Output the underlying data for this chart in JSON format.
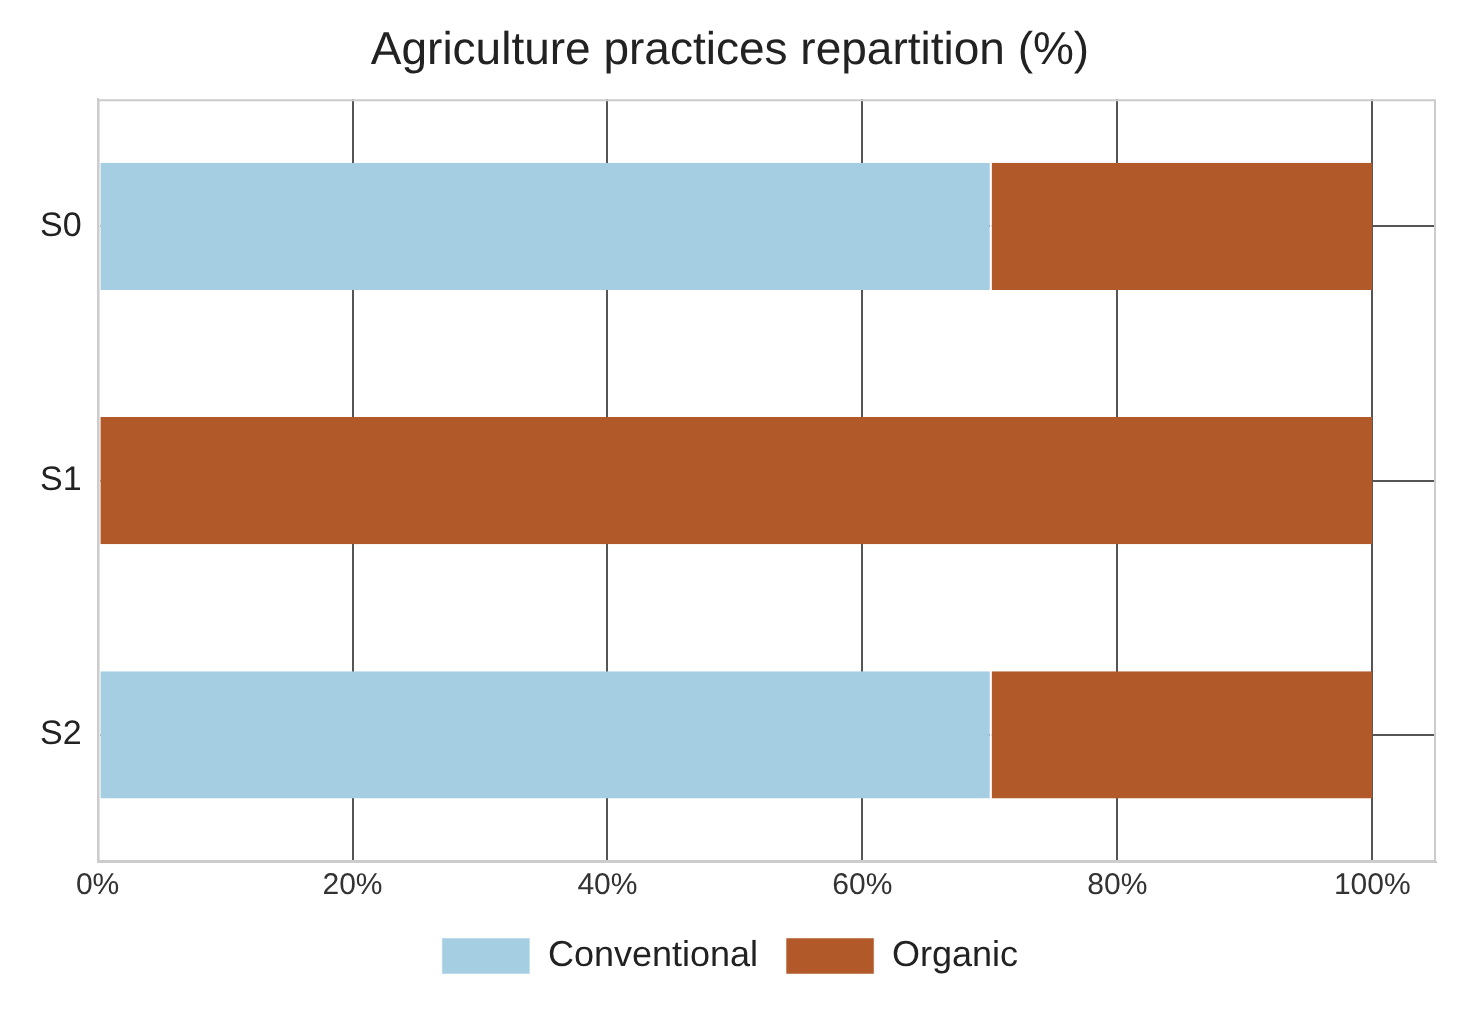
{
  "chart_data": {
    "type": "bar",
    "orientation": "horizontal",
    "stacked": true,
    "title": "Agriculture practices repartition (%)",
    "categories": [
      "S0",
      "S1",
      "S2"
    ],
    "series": [
      {
        "name": "Conventional",
        "color": "#a6cee3",
        "values": [
          70,
          0,
          70
        ]
      },
      {
        "name": "Organic",
        "color": "#b15928",
        "values": [
          30,
          100,
          30
        ]
      }
    ],
    "xlim": [
      0,
      105
    ],
    "xticks": [
      {
        "value": 0,
        "label": "0%"
      },
      {
        "value": 20,
        "label": "20%"
      },
      {
        "value": 40,
        "label": "40%"
      },
      {
        "value": 60,
        "label": "60%"
      },
      {
        "value": 80,
        "label": "80%"
      },
      {
        "value": 100,
        "label": "100%"
      }
    ],
    "grid": true,
    "legend": "bottom"
  }
}
